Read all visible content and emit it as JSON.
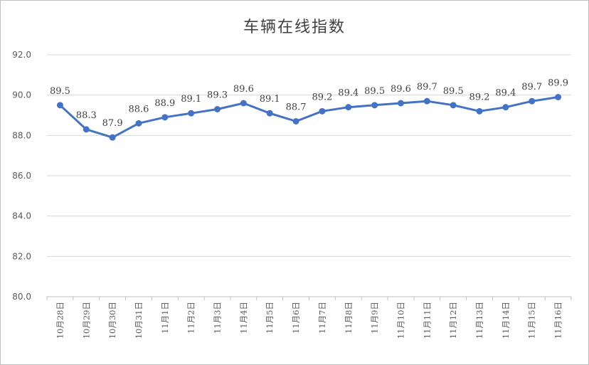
{
  "chart_data": {
    "type": "line",
    "title": "车辆在线指数",
    "xlabel": "",
    "ylabel": "",
    "ylim": [
      80.0,
      92.0
    ],
    "yticks": [
      "80.0",
      "82.0",
      "84.0",
      "86.0",
      "88.0",
      "90.0",
      "92.0"
    ],
    "grid": true,
    "legend": "none",
    "categories": [
      "10月28日",
      "10月29日",
      "10月30日",
      "10月31日",
      "11月1日",
      "11月2日",
      "11月3日",
      "11月4日",
      "11月5日",
      "11月6日",
      "11月7日",
      "11月8日",
      "11月9日",
      "11月10日",
      "11月11日",
      "11月12日",
      "11月13日",
      "11月14日",
      "11月15日",
      "11月16日"
    ],
    "series": [
      {
        "values": [
          89.5,
          88.3,
          87.9,
          88.6,
          88.9,
          89.1,
          89.3,
          89.6,
          89.1,
          88.7,
          89.2,
          89.4,
          89.5,
          89.6,
          89.7,
          89.5,
          89.2,
          89.4,
          89.7,
          89.9
        ],
        "labels": [
          "89.5",
          "88.3",
          "87.9",
          "88.6",
          "88.9",
          "89.1",
          "89.3",
          "89.6",
          "89.1",
          "88.7",
          "89.2",
          "89.4",
          "89.5",
          "89.6",
          "89.7",
          "89.5",
          "89.2",
          "89.4",
          "89.7",
          "89.9"
        ]
      }
    ],
    "colors": {
      "line": "#4472c4",
      "grid": "#d9d9d9",
      "axis": "#bfbfbf"
    }
  }
}
